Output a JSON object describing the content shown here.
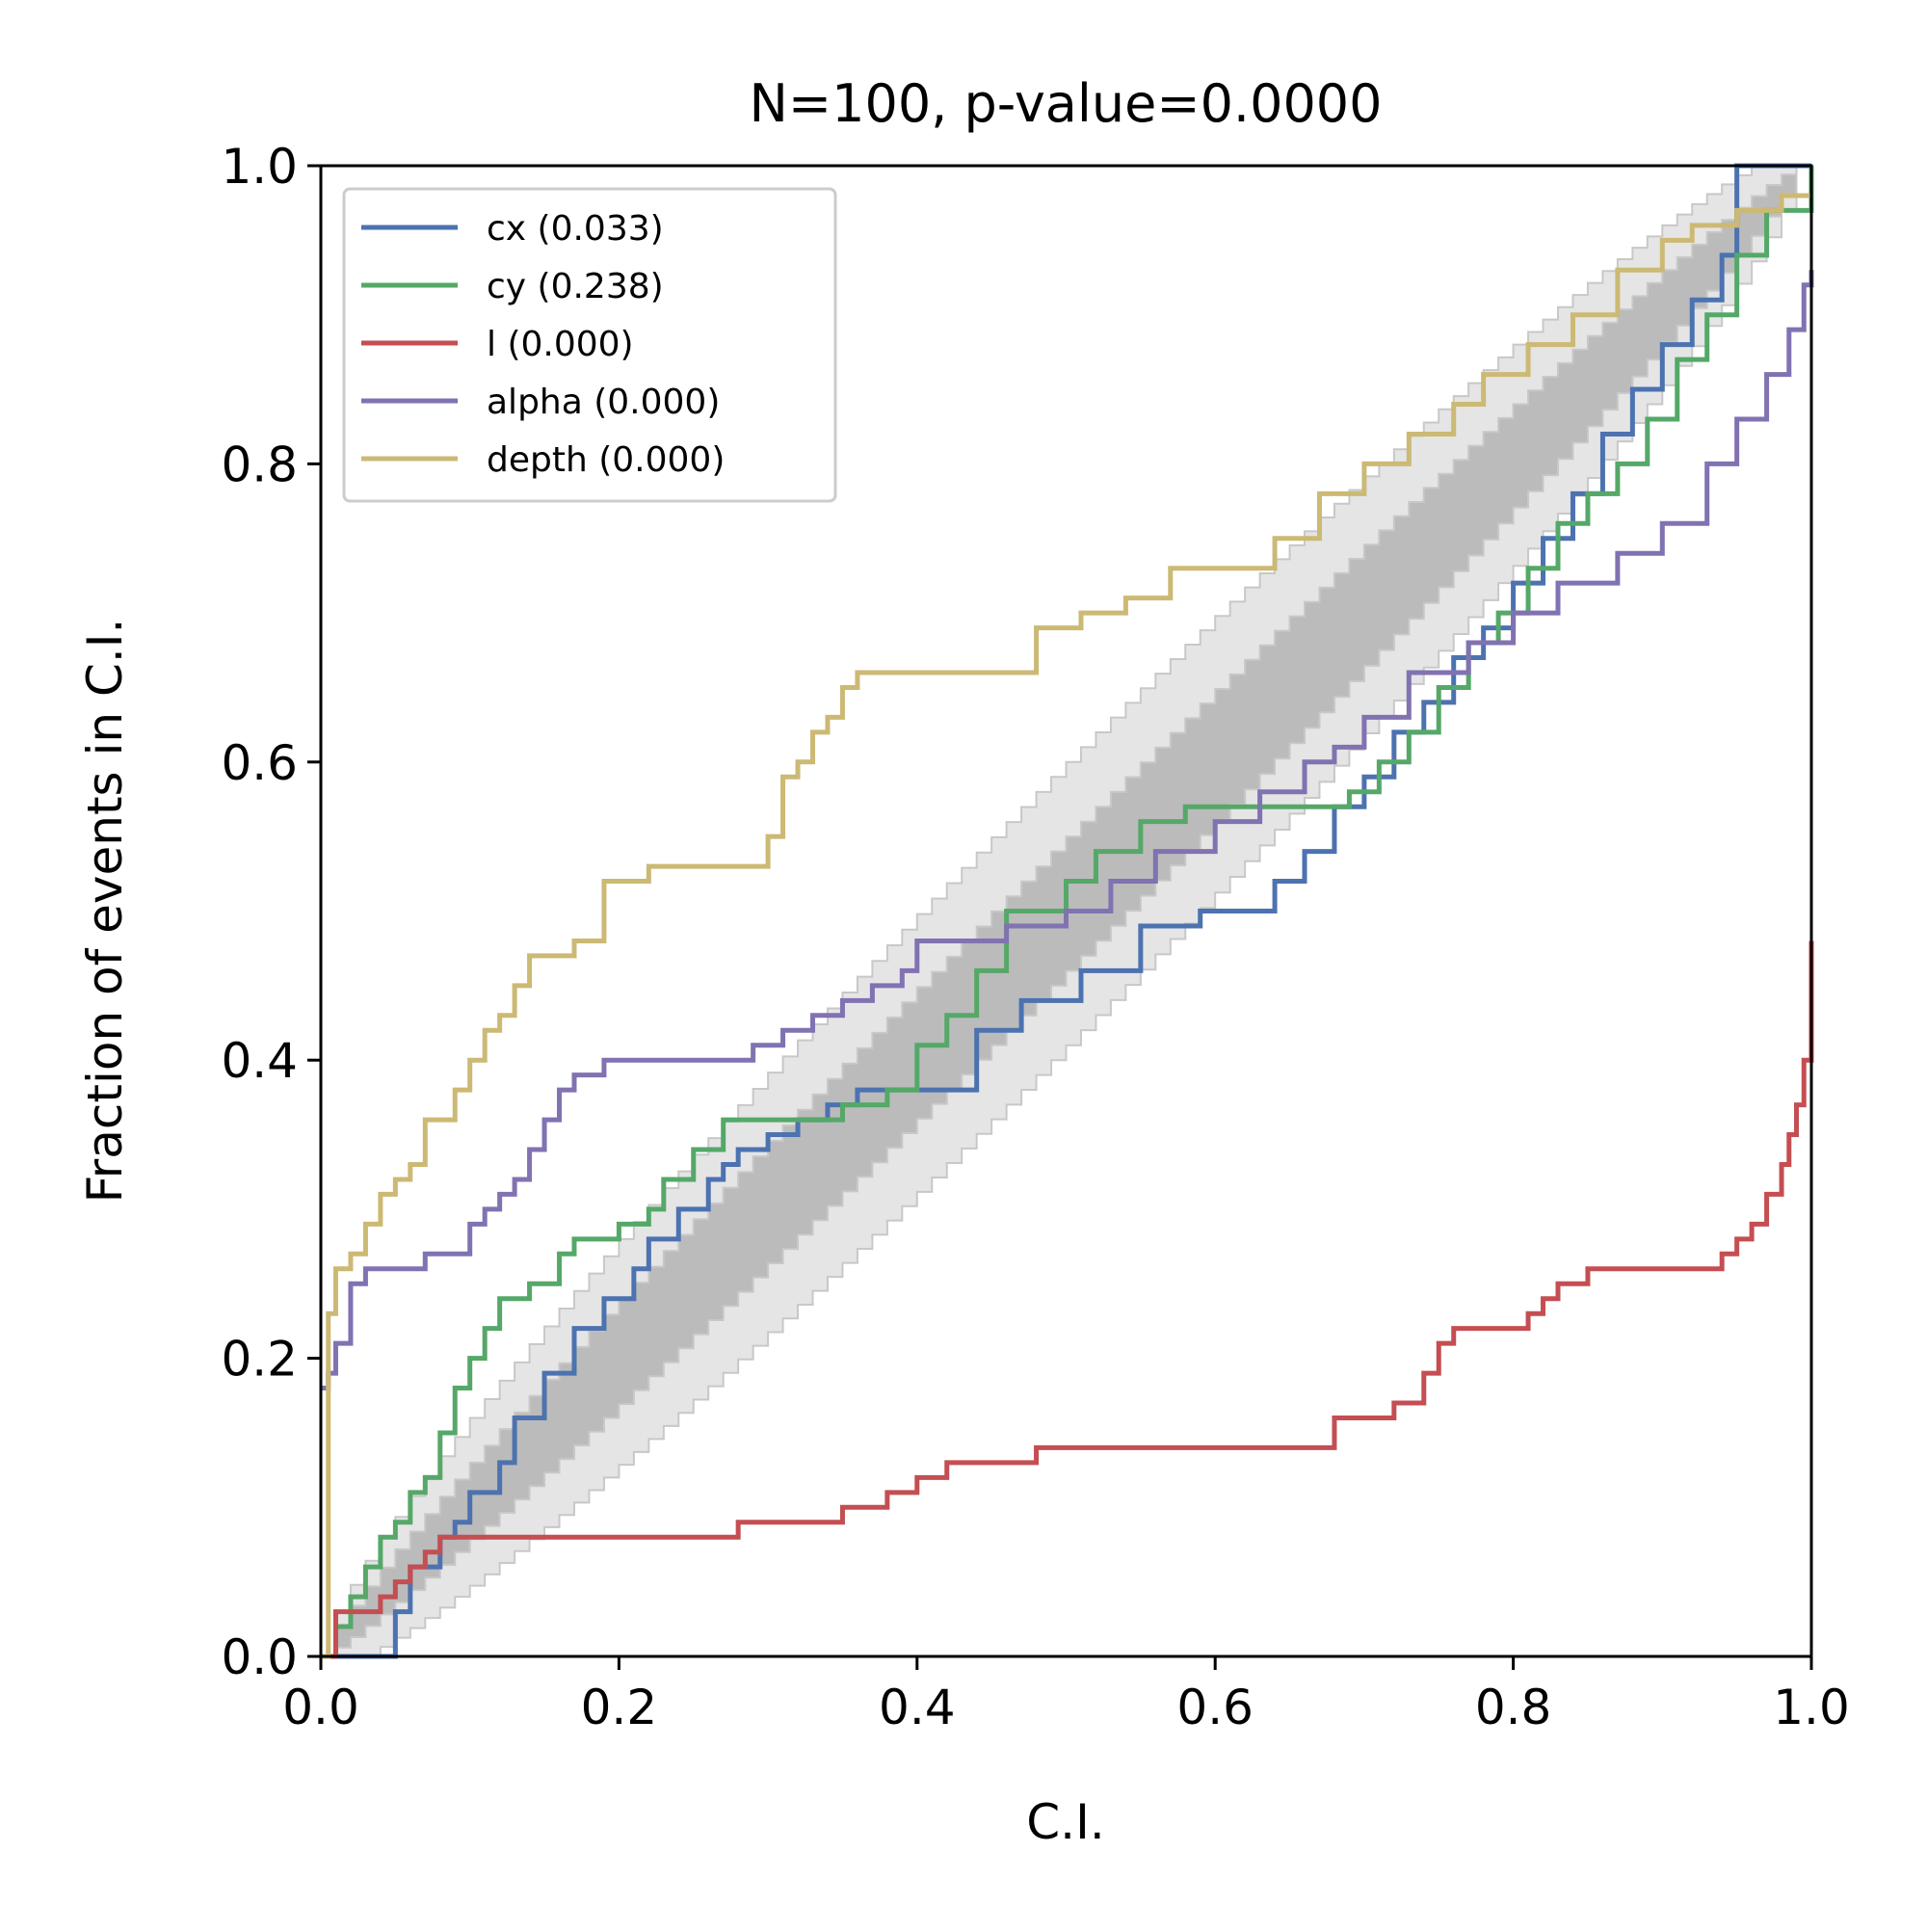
{
  "chart_data": {
    "type": "line",
    "title": "N=100, p-value=0.0000",
    "xlabel": "C.I.",
    "ylabel": "Fraction of events in C.I.",
    "xlim": [
      0,
      1
    ],
    "ylim": [
      0,
      1
    ],
    "xticks": [
      "0.0",
      "0.2",
      "0.4",
      "0.6",
      "0.8",
      "1.0"
    ],
    "yticks": [
      "0.0",
      "0.2",
      "0.4",
      "0.6",
      "0.8",
      "1.0"
    ],
    "grid": false,
    "legend_position": "top-left",
    "confidence_bands": [
      {
        "name": "",
        "color": "#bbbbbb",
        "halfwidth": 0.05
      },
      {
        "name": "",
        "color": "#e5e5e5",
        "halfwidth": 0.1
      }
    ],
    "series": [
      {
        "name": "cx (0.033)",
        "color": "#4c72b0",
        "x": [
          0.0,
          0.05,
          0.05,
          0.06,
          0.08,
          0.09,
          0.1,
          0.12,
          0.13,
          0.15,
          0.17,
          0.19,
          0.21,
          0.22,
          0.24,
          0.26,
          0.27,
          0.28,
          0.3,
          0.32,
          0.34,
          0.35,
          0.36,
          0.4,
          0.44,
          0.47,
          0.51,
          0.55,
          0.59,
          0.6,
          0.64,
          0.66,
          0.68,
          0.7,
          0.72,
          0.74,
          0.76,
          0.78,
          0.8,
          0.82,
          0.84,
          0.86,
          0.88,
          0.9,
          0.92,
          0.94,
          0.95,
          1.0
        ],
        "y": [
          0.0,
          0.0,
          0.03,
          0.06,
          0.08,
          0.09,
          0.11,
          0.13,
          0.16,
          0.19,
          0.22,
          0.24,
          0.26,
          0.28,
          0.3,
          0.32,
          0.33,
          0.34,
          0.35,
          0.36,
          0.37,
          0.37,
          0.38,
          0.38,
          0.42,
          0.44,
          0.46,
          0.49,
          0.5,
          0.5,
          0.52,
          0.54,
          0.57,
          0.59,
          0.62,
          0.64,
          0.67,
          0.69,
          0.72,
          0.75,
          0.78,
          0.82,
          0.85,
          0.88,
          0.91,
          0.94,
          1.0,
          1.0
        ]
      },
      {
        "name": "cy (0.238)",
        "color": "#55a868",
        "x": [
          0.0,
          0.01,
          0.02,
          0.03,
          0.04,
          0.05,
          0.06,
          0.07,
          0.08,
          0.09,
          0.1,
          0.11,
          0.12,
          0.13,
          0.14,
          0.16,
          0.17,
          0.19,
          0.2,
          0.22,
          0.23,
          0.25,
          0.27,
          0.29,
          0.31,
          0.35,
          0.38,
          0.4,
          0.42,
          0.44,
          0.46,
          0.5,
          0.52,
          0.55,
          0.58,
          0.62,
          0.66,
          0.69,
          0.71,
          0.73,
          0.75,
          0.77,
          0.79,
          0.81,
          0.83,
          0.85,
          0.87,
          0.89,
          0.91,
          0.93,
          0.95,
          0.97,
          1.0
        ],
        "y": [
          0.0,
          0.02,
          0.04,
          0.06,
          0.08,
          0.09,
          0.11,
          0.12,
          0.15,
          0.18,
          0.2,
          0.22,
          0.24,
          0.24,
          0.25,
          0.27,
          0.28,
          0.28,
          0.29,
          0.3,
          0.32,
          0.34,
          0.36,
          0.36,
          0.36,
          0.37,
          0.38,
          0.41,
          0.43,
          0.46,
          0.5,
          0.52,
          0.54,
          0.56,
          0.57,
          0.57,
          0.57,
          0.58,
          0.6,
          0.62,
          0.65,
          0.68,
          0.7,
          0.73,
          0.76,
          0.78,
          0.8,
          0.83,
          0.87,
          0.9,
          0.94,
          0.97,
          1.0
        ]
      },
      {
        "name": "l (0.000)",
        "color": "#c44e52",
        "x": [
          0.0,
          0.01,
          0.04,
          0.05,
          0.06,
          0.07,
          0.08,
          0.1,
          0.2,
          0.28,
          0.35,
          0.38,
          0.4,
          0.42,
          0.45,
          0.48,
          0.52,
          0.6,
          0.67,
          0.68,
          0.72,
          0.74,
          0.75,
          0.76,
          0.79,
          0.81,
          0.82,
          0.83,
          0.84,
          0.85,
          0.87,
          0.93,
          0.94,
          0.95,
          0.96,
          0.97,
          0.98,
          0.985,
          0.99,
          0.995,
          1.0
        ],
        "y": [
          0.0,
          0.03,
          0.04,
          0.05,
          0.06,
          0.07,
          0.08,
          0.08,
          0.08,
          0.09,
          0.1,
          0.11,
          0.12,
          0.13,
          0.13,
          0.14,
          0.14,
          0.14,
          0.14,
          0.16,
          0.17,
          0.19,
          0.21,
          0.22,
          0.22,
          0.23,
          0.24,
          0.25,
          0.25,
          0.26,
          0.26,
          0.26,
          0.27,
          0.28,
          0.29,
          0.31,
          0.33,
          0.35,
          0.37,
          0.4,
          0.48
        ]
      },
      {
        "name": "alpha (0.000)",
        "color": "#8172b2",
        "x": [
          0.0,
          0.005,
          0.01,
          0.02,
          0.03,
          0.05,
          0.07,
          0.1,
          0.11,
          0.12,
          0.13,
          0.14,
          0.15,
          0.16,
          0.17,
          0.19,
          0.25,
          0.29,
          0.31,
          0.33,
          0.35,
          0.37,
          0.39,
          0.4,
          0.41,
          0.46,
          0.5,
          0.53,
          0.56,
          0.6,
          0.63,
          0.66,
          0.68,
          0.7,
          0.73,
          0.77,
          0.8,
          0.83,
          0.87,
          0.9,
          0.93,
          0.95,
          0.97,
          0.985,
          0.995,
          1.0
        ],
        "y": [
          0.18,
          0.19,
          0.21,
          0.25,
          0.26,
          0.26,
          0.27,
          0.29,
          0.3,
          0.31,
          0.32,
          0.34,
          0.36,
          0.38,
          0.39,
          0.4,
          0.4,
          0.41,
          0.42,
          0.43,
          0.44,
          0.45,
          0.46,
          0.48,
          0.48,
          0.49,
          0.5,
          0.52,
          0.54,
          0.56,
          0.58,
          0.6,
          0.61,
          0.63,
          0.66,
          0.68,
          0.7,
          0.72,
          0.74,
          0.76,
          0.8,
          0.83,
          0.86,
          0.89,
          0.92,
          0.93
        ]
      },
      {
        "name": "depth (0.000)",
        "color": "#ccb974",
        "x": [
          0.0,
          0.005,
          0.01,
          0.02,
          0.03,
          0.04,
          0.05,
          0.06,
          0.07,
          0.09,
          0.1,
          0.11,
          0.12,
          0.13,
          0.14,
          0.17,
          0.19,
          0.22,
          0.28,
          0.3,
          0.31,
          0.32,
          0.33,
          0.34,
          0.35,
          0.36,
          0.46,
          0.48,
          0.51,
          0.54,
          0.57,
          0.61,
          0.64,
          0.67,
          0.7,
          0.73,
          0.76,
          0.78,
          0.81,
          0.84,
          0.87,
          0.9,
          0.92,
          0.95,
          0.98,
          1.0
        ],
        "y": [
          0.0,
          0.23,
          0.26,
          0.27,
          0.29,
          0.31,
          0.32,
          0.33,
          0.36,
          0.38,
          0.4,
          0.42,
          0.43,
          0.45,
          0.47,
          0.48,
          0.52,
          0.53,
          0.53,
          0.55,
          0.59,
          0.6,
          0.62,
          0.63,
          0.65,
          0.66,
          0.66,
          0.69,
          0.7,
          0.71,
          0.73,
          0.73,
          0.75,
          0.78,
          0.8,
          0.82,
          0.84,
          0.86,
          0.88,
          0.9,
          0.93,
          0.95,
          0.96,
          0.97,
          0.98,
          0.98
        ]
      }
    ]
  }
}
